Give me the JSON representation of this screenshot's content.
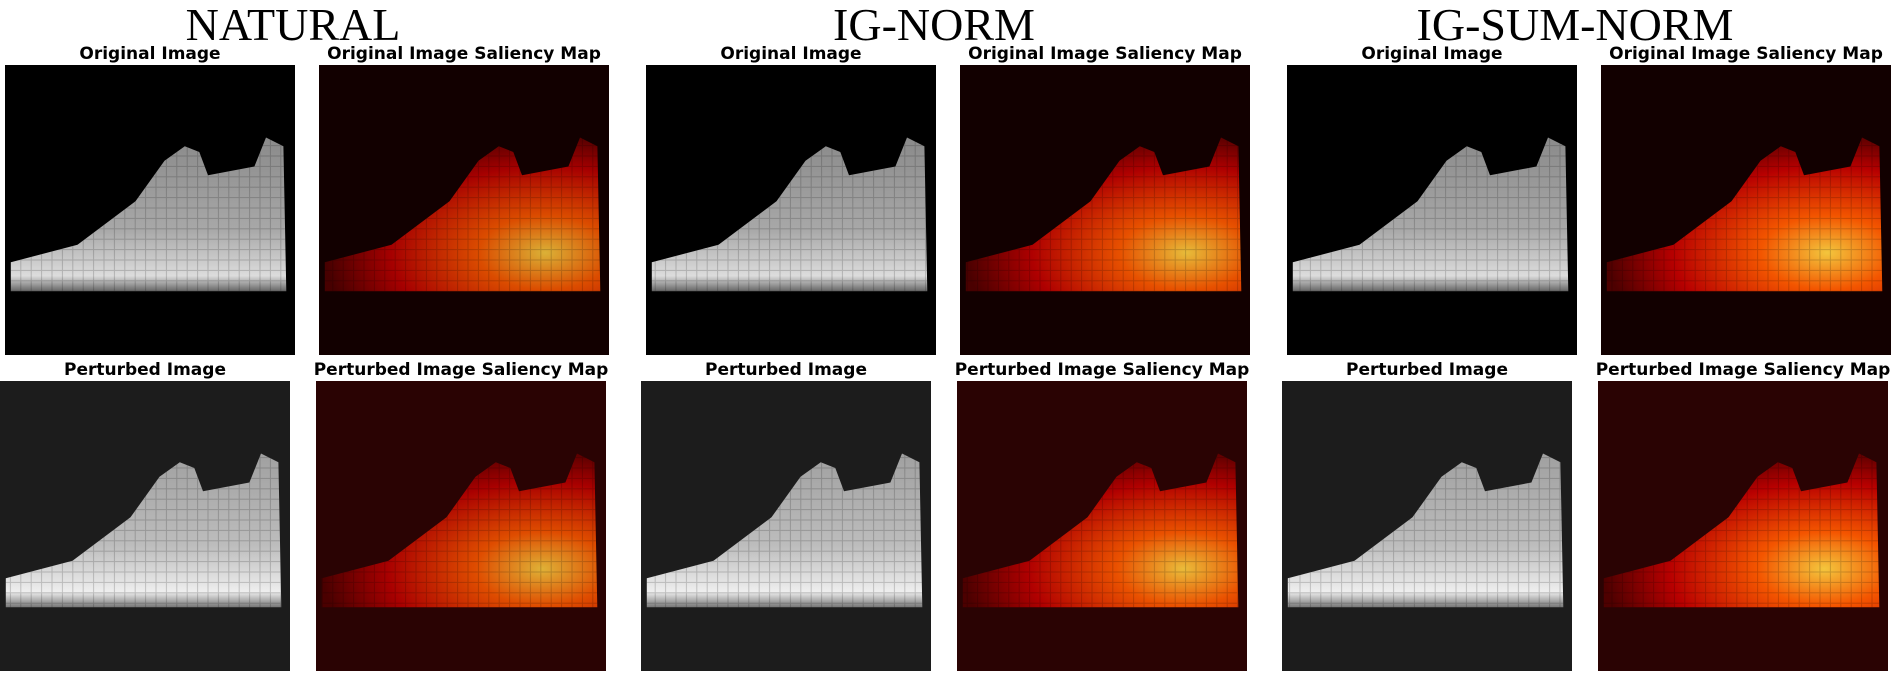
{
  "sections": [
    {
      "title": "NATURAL",
      "panels": [
        "Original Image",
        "Original Image Saliency Map",
        "Perturbed Image",
        "Perturbed Image Saliency Map"
      ]
    },
    {
      "title": "IG-NORM",
      "panels": [
        "Original Image",
        "Original Image Saliency Map",
        "Perturbed Image",
        "Perturbed Image Saliency Map"
      ]
    },
    {
      "title": "IG-SUM-NORM",
      "panels": [
        "Original Image",
        "Original Image Saliency Map",
        "Perturbed Image",
        "Perturbed Image Saliency Map"
      ]
    }
  ]
}
